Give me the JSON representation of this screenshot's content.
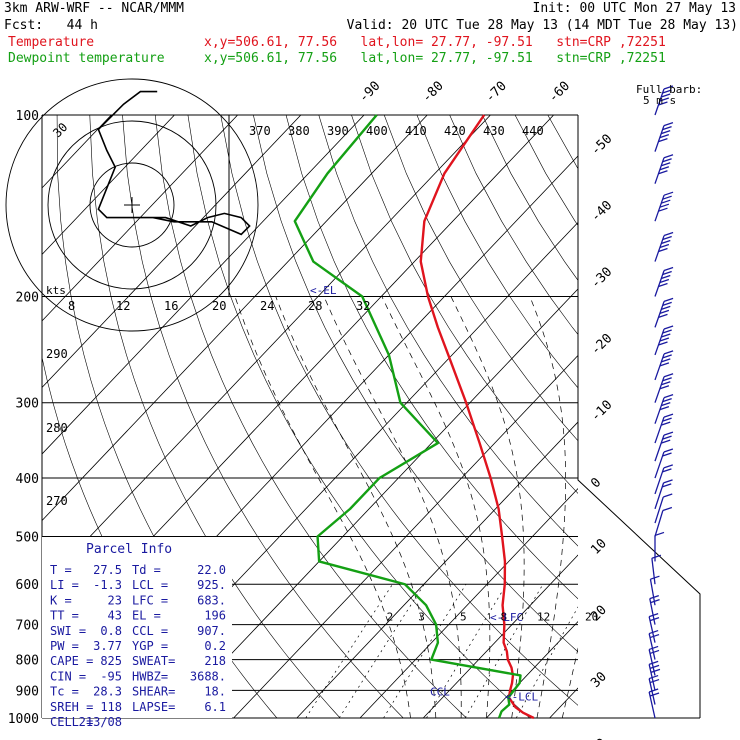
{
  "header": {
    "model": "3km ARW-WRF -- NCAR/MMM",
    "init": "Init: 00 UTC Mon 27 May 13",
    "fcst": "Fcst:   44 h",
    "valid": "Valid: 20 UTC Tue 28 May 13 (14 MDT Tue 28 May 13)",
    "temp_label": "Temperature",
    "dew_label": "Dewpoint temperature",
    "temp_loc": "x,y=506.61, 77.56   lat,lon= 27.77, -97.51   stn=CRP ,72251",
    "dew_loc": "x,y=506.61, 77.56   lat,lon= 27.77, -97.51   stn=CRP ,72251"
  },
  "wind_title": "Full barb:",
  "wind_units": "5 m s",
  "colors": {
    "temperature": "#e0141e",
    "dewpoint": "#14a014",
    "wind": "#1a1aa0",
    "grid": "#000000"
  },
  "chart_data": {
    "type": "line",
    "chart_kind": "skew-T log-P sounding",
    "pressure_axis": {
      "scale": "log",
      "range_hPa": [
        1000,
        100
      ],
      "ticks": [
        "100",
        "200",
        "300",
        "400",
        "500",
        "600",
        "700",
        "800",
        "900",
        "1000"
      ]
    },
    "isotherm_labels": [
      "-90",
      "-80",
      "-70",
      "-60",
      "-50",
      "-40",
      "-30",
      "-20",
      "-10",
      "0",
      "10",
      "20",
      "30",
      "40"
    ],
    "theta_labels": [
      "370",
      "380",
      "390",
      "400",
      "410",
      "420",
      "430",
      "440"
    ],
    "mixing_ratio_labels": [
      "2",
      "3",
      "5",
      "8",
      "12",
      "20"
    ],
    "hodograph": {
      "unit": "kts",
      "ring_labels": [
        "8",
        "12",
        "16",
        "20",
        "24",
        "28",
        "32"
      ]
    },
    "thetae_labels": [
      "290",
      "280",
      "270"
    ],
    "levels": [
      {
        "text": "<-EL",
        "p": 196
      },
      {
        "text": "<-LFC",
        "p": 683
      },
      {
        "text": "CCL",
        "p": 907
      },
      {
        "text": "<-LCL",
        "p": 925
      }
    ],
    "series": [
      {
        "name": "Temperature",
        "points": [
          [
            1000,
            27.5
          ],
          [
            980,
            25
          ],
          [
            960,
            23
          ],
          [
            950,
            22.3
          ],
          [
            925,
            20.5
          ],
          [
            900,
            19.6
          ],
          [
            875,
            18.8
          ],
          [
            850,
            17.8
          ],
          [
            825,
            16.4
          ],
          [
            800,
            14.6
          ],
          [
            775,
            13.2
          ],
          [
            750,
            11.4
          ],
          [
            700,
            8.8
          ],
          [
            650,
            5.6
          ],
          [
            600,
            2.8
          ],
          [
            550,
            -0.6
          ],
          [
            500,
            -4.8
          ],
          [
            450,
            -9.5
          ],
          [
            400,
            -15.4
          ],
          [
            350,
            -22.4
          ],
          [
            300,
            -30.6
          ],
          [
            250,
            -40.6
          ],
          [
            225,
            -46.4
          ],
          [
            200,
            -52.6
          ],
          [
            175,
            -59
          ],
          [
            150,
            -64.5
          ],
          [
            125,
            -68.5
          ],
          [
            100,
            -71
          ]
        ]
      },
      {
        "name": "Dewpoint temperature",
        "points": [
          [
            1000,
            22
          ],
          [
            975,
            21.4
          ],
          [
            950,
            21.6
          ],
          [
            925,
            20.4
          ],
          [
            900,
            20.2
          ],
          [
            875,
            20
          ],
          [
            850,
            19
          ],
          [
            800,
            2.5
          ],
          [
            750,
            1
          ],
          [
            700,
            -2
          ],
          [
            650,
            -6.5
          ],
          [
            600,
            -13
          ],
          [
            550,
            -30
          ],
          [
            500,
            -34
          ],
          [
            450,
            -33
          ],
          [
            400,
            -33
          ],
          [
            350,
            -29
          ],
          [
            300,
            -41
          ],
          [
            250,
            -50
          ],
          [
            200,
            -63
          ],
          [
            175,
            -76
          ],
          [
            150,
            -85
          ],
          [
            125,
            -87
          ],
          [
            100,
            -88
          ]
        ]
      }
    ]
  },
  "hodograph_points": [
    [
      0,
      -3
    ],
    [
      8,
      -3
    ],
    [
      14,
      -5
    ],
    [
      18,
      -3
    ],
    [
      22,
      -2
    ],
    [
      26,
      -3
    ],
    [
      28,
      -5
    ],
    [
      26,
      -7
    ],
    [
      19,
      -4
    ],
    [
      14,
      -4
    ],
    [
      10,
      -4
    ],
    [
      5,
      -3
    ],
    [
      1,
      -3
    ],
    [
      -6,
      -3
    ],
    [
      -8,
      -1
    ],
    [
      -6,
      4
    ],
    [
      -4,
      9
    ],
    [
      -6,
      13
    ],
    [
      -8,
      18
    ],
    [
      -5,
      21
    ],
    [
      -4,
      22
    ],
    [
      -2,
      24
    ],
    [
      2,
      27
    ],
    [
      6,
      27
    ]
  ],
  "parcel_info": {
    "title": "Parcel Info",
    "rows": [
      [
        "T  =",
        "27.5",
        "Td =",
        "22.0"
      ],
      [
        "LI =",
        "-1.3",
        "LCL =",
        "925."
      ],
      [
        "K  =",
        "23",
        "LFC =",
        "683."
      ],
      [
        "TT =",
        "43",
        "EL  =",
        "196"
      ],
      [
        "SWI =",
        "0.8",
        "CCL =",
        "907."
      ],
      [
        "PW =",
        "3.77",
        "YGP =",
        "0.2"
      ],
      [
        "CAPE =",
        "825",
        "SWEAT=",
        "218"
      ],
      [
        "CIN =",
        "-95",
        "HWBZ=",
        "3688."
      ],
      [
        "Tc =",
        "28.3",
        "SHEAR=",
        "18."
      ],
      [
        "SREH =",
        "118",
        "LAPSE=",
        "6.1"
      ],
      [
        "CELL =",
        "213/08",
        "",
        ""
      ]
    ]
  },
  "wind_profile": [
    [
      100,
      25,
      260
    ],
    [
      115,
      26,
      260
    ],
    [
      130,
      25,
      262
    ],
    [
      150,
      27,
      265
    ],
    [
      175,
      25,
      268
    ],
    [
      200,
      24,
      266
    ],
    [
      225,
      24,
      268
    ],
    [
      250,
      23,
      268
    ],
    [
      275,
      22,
      270
    ],
    [
      300,
      20,
      268
    ],
    [
      325,
      18,
      265
    ],
    [
      350,
      16,
      262
    ],
    [
      375,
      14,
      260
    ],
    [
      400,
      12,
      258
    ],
    [
      425,
      10,
      255
    ],
    [
      450,
      8,
      250
    ],
    [
      475,
      7,
      245
    ],
    [
      500,
      6,
      240
    ],
    [
      550,
      5,
      180
    ],
    [
      600,
      6,
      160
    ],
    [
      650,
      7,
      150
    ],
    [
      700,
      8,
      145
    ],
    [
      750,
      9,
      140
    ],
    [
      800,
      10,
      140
    ],
    [
      850,
      12,
      140
    ],
    [
      900,
      13,
      140
    ],
    [
      950,
      12,
      140
    ],
    [
      1000,
      10,
      140
    ]
  ]
}
